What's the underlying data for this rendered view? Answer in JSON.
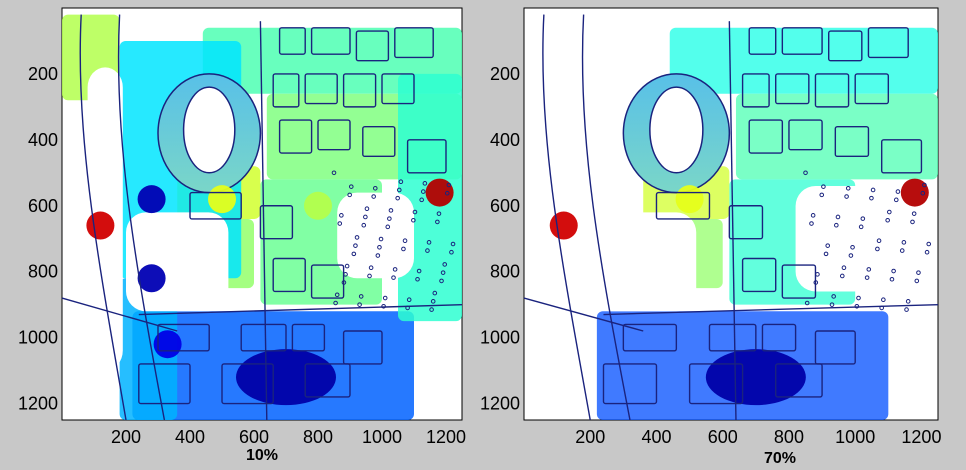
{
  "figure": {
    "background": "#c8c8c8"
  },
  "chart_data": [
    {
      "type": "heatmap",
      "title": "10%",
      "xlabel": "",
      "ylabel": "",
      "x_ticks": [
        200,
        400,
        600,
        800,
        1000,
        1200
      ],
      "y_ticks": [
        200,
        400,
        600,
        800,
        1000,
        1200
      ],
      "xlim": [
        0,
        1250
      ],
      "ylim": [
        1250,
        0
      ],
      "y_axis_reversed": true,
      "colormap": "jet",
      "nodata_color": "#ffffff",
      "contour_color": "#1a237e",
      "features": [
        {
          "kind": "blob",
          "x": 700,
          "y": 1120,
          "level": 0.04
        },
        {
          "kind": "blob",
          "x": 330,
          "y": 1020,
          "level": 0.1
        },
        {
          "kind": "blob",
          "x": 280,
          "y": 580,
          "level": 0.05
        },
        {
          "kind": "blob",
          "x": 280,
          "y": 820,
          "level": 0.05
        },
        {
          "kind": "blob",
          "x": 120,
          "y": 660,
          "level": 0.92
        },
        {
          "kind": "blob",
          "x": 1180,
          "y": 560,
          "level": 0.95
        },
        {
          "kind": "blob",
          "x": 800,
          "y": 600,
          "level": 0.55
        },
        {
          "kind": "blob",
          "x": 500,
          "y": 580,
          "level": 0.6
        }
      ]
    },
    {
      "type": "heatmap",
      "title": "70%",
      "xlabel": "",
      "ylabel": "",
      "x_ticks": [
        200,
        400,
        600,
        800,
        1000,
        1200
      ],
      "y_ticks": [
        200,
        400,
        600,
        800,
        1000,
        1200
      ],
      "xlim": [
        0,
        1250
      ],
      "ylim": [
        1250,
        0
      ],
      "y_axis_reversed": true,
      "colormap": "jet",
      "nodata_color": "#ffffff",
      "contour_color": "#1a237e",
      "features": [
        {
          "kind": "blob",
          "x": 700,
          "y": 1120,
          "level": 0.04
        },
        {
          "kind": "blob",
          "x": 120,
          "y": 660,
          "level": 0.92
        },
        {
          "kind": "blob",
          "x": 1180,
          "y": 560,
          "level": 0.95
        },
        {
          "kind": "blob",
          "x": 500,
          "y": 580,
          "level": 0.6
        }
      ]
    }
  ]
}
